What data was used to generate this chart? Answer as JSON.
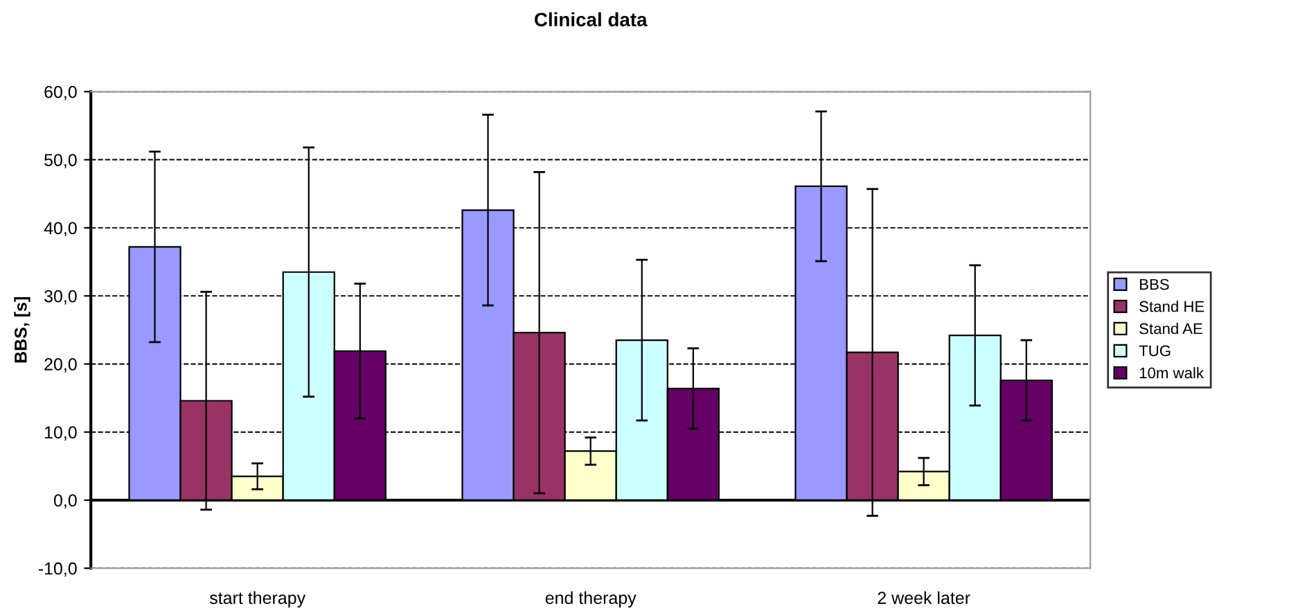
{
  "chart_data": {
    "type": "bar",
    "title": "Clinical data",
    "ylabel": "BBS, [s]",
    "categories": [
      "start therapy",
      "end therapy",
      "2 week later"
    ],
    "series": [
      {
        "name": "BBS",
        "color": "#9999ff",
        "values": [
          37.2,
          42.6,
          46.1
        ],
        "errors": [
          14,
          14,
          11
        ]
      },
      {
        "name": "Stand HE",
        "color": "#993366",
        "values": [
          14.6,
          24.6,
          21.7
        ],
        "errors": [
          16,
          23.6,
          24
        ]
      },
      {
        "name": "Stand AE",
        "color": "#ffffcc",
        "values": [
          3.5,
          7.2,
          4.2
        ],
        "errors": [
          1.9,
          2,
          2
        ]
      },
      {
        "name": "TUG",
        "color": "#ccffff",
        "values": [
          33.5,
          23.5,
          24.2
        ],
        "errors": [
          18.3,
          11.8,
          10.3
        ]
      },
      {
        "name": "10m walk",
        "color": "#660066",
        "values": [
          21.9,
          16.4,
          17.6
        ],
        "errors": [
          9.9,
          5.9,
          5.9
        ]
      }
    ],
    "ylim": [
      -10,
      60
    ],
    "yticks": [
      {
        "value": -10,
        "label": "-10,0"
      },
      {
        "value": 0,
        "label": "0,0"
      },
      {
        "value": 10,
        "label": "10,0"
      },
      {
        "value": 20,
        "label": "20,0"
      },
      {
        "value": 30,
        "label": "30,0"
      },
      {
        "value": 40,
        "label": "40,0"
      },
      {
        "value": 50,
        "label": "50,0"
      },
      {
        "value": 60,
        "label": "60,0"
      }
    ],
    "grid": "y",
    "legend": "right"
  }
}
